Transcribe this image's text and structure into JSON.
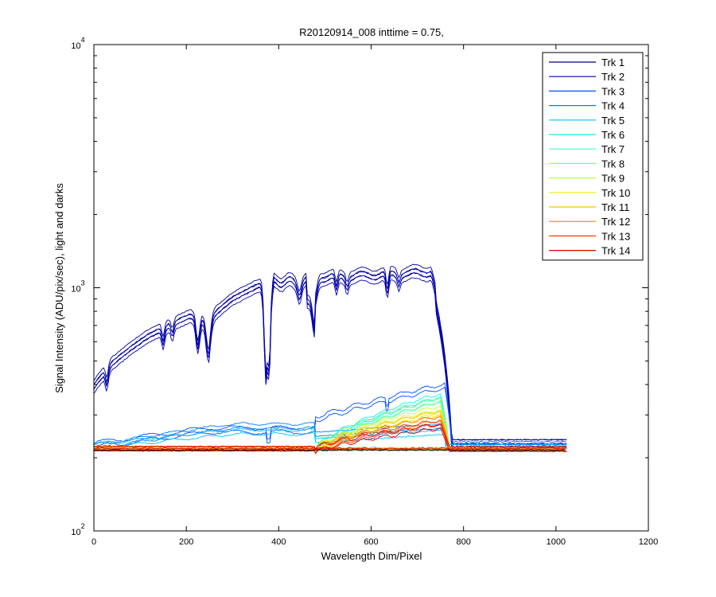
{
  "chart_data": {
    "type": "line",
    "title": "R20120914_008 inttime = 0.75,",
    "xlabel": "Wavelength Dim/Pixel",
    "ylabel": "Signal Intensity (ADU/pix/sec), light and darks",
    "xlim": [
      0,
      1200
    ],
    "ylim": [
      100,
      10000
    ],
    "yscale": "log",
    "xticks": [
      0,
      200,
      400,
      600,
      800,
      1000,
      1200
    ],
    "yticks": [
      {
        "base": "10",
        "exp": "2",
        "value": 100
      },
      {
        "base": "10",
        "exp": "3",
        "value": 1000
      },
      {
        "base": "10",
        "exp": "4",
        "value": 10000
      }
    ],
    "legend_position": "top-right",
    "dark_level": 215,
    "series": [
      {
        "name": "Trk 1",
        "color": "#00008f",
        "peak": 1150,
        "kind": "full"
      },
      {
        "name": "Trk 2",
        "color": "#0000b4",
        "peak": 1100,
        "kind": "full"
      },
      {
        "name": "Trk 3",
        "color": "#0050ff",
        "peak": 395,
        "kind": "mid"
      },
      {
        "name": "Trk 4",
        "color": "#0080ff",
        "peak": 270,
        "kind": "low"
      },
      {
        "name": "Trk 5",
        "color": "#00c0ff",
        "peak": 255,
        "kind": "low"
      },
      {
        "name": "Trk 6",
        "color": "#10efef",
        "peak": 360,
        "kind": "red"
      },
      {
        "name": "Trk 7",
        "color": "#40ffbf",
        "peak": 350,
        "kind": "red"
      },
      {
        "name": "Trk 8",
        "color": "#80ff80",
        "peak": 345,
        "kind": "red"
      },
      {
        "name": "Trk 9",
        "color": "#bfff40",
        "peak": 320,
        "kind": "red"
      },
      {
        "name": "Trk 10",
        "color": "#efef10",
        "peak": 310,
        "kind": "red"
      },
      {
        "name": "Trk 11",
        "color": "#ffc000",
        "peak": 305,
        "kind": "red"
      },
      {
        "name": "Trk 12",
        "color": "#ff8000",
        "peak": 290,
        "kind": "red"
      },
      {
        "name": "Trk 13",
        "color": "#ff4000",
        "peak": 280,
        "kind": "red"
      },
      {
        "name": "Trk 14",
        "color": "#df0000",
        "peak": 270,
        "kind": "red"
      }
    ]
  }
}
